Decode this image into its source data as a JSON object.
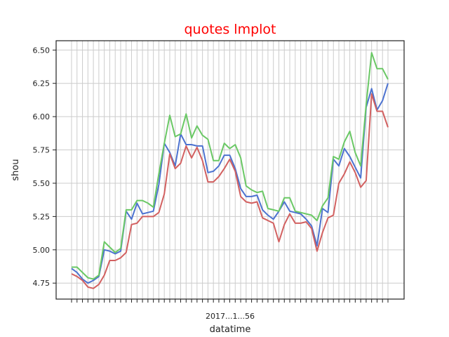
{
  "chart_data": {
    "type": "line",
    "title": "quotes lmplot",
    "xlabel": "datatime",
    "ylabel": "shou",
    "ylim": [
      4.63,
      6.57
    ],
    "yticks": [
      "4.75",
      "5.00",
      "5.25",
      "5.50",
      "5.75",
      "6.00",
      "6.25",
      "6.50"
    ],
    "xtick_overlap_text": "2017...1...56",
    "grid": true,
    "colors": {
      "blue": "#4c72d0",
      "green": "#6ac865",
      "red": "#d26060",
      "title": "#ff0000",
      "grid": "#cccccc"
    },
    "series": [
      {
        "color": "blue",
        "values": [
          4.86,
          4.83,
          4.78,
          4.75,
          4.77,
          4.8,
          5.0,
          4.99,
          4.97,
          4.99,
          5.29,
          5.23,
          5.35,
          5.27,
          5.28,
          5.29,
          5.49,
          5.8,
          5.73,
          5.63,
          5.87,
          5.79,
          5.79,
          5.78,
          5.78,
          5.58,
          5.59,
          5.63,
          5.71,
          5.71,
          5.61,
          5.46,
          5.4,
          5.4,
          5.41,
          5.3,
          5.26,
          5.23,
          5.29,
          5.36,
          5.29,
          5.28,
          5.27,
          5.23,
          5.18,
          5.03,
          5.31,
          5.28,
          5.68,
          5.63,
          5.76,
          5.7,
          5.62,
          5.54,
          6.07,
          6.21,
          6.05,
          6.12,
          6.25
        ]
      },
      {
        "color": "green",
        "values": [
          4.87,
          4.87,
          4.83,
          4.79,
          4.78,
          4.81,
          5.06,
          5.02,
          4.98,
          5.01,
          5.3,
          5.3,
          5.37,
          5.37,
          5.35,
          5.32,
          5.57,
          5.8,
          6.01,
          5.85,
          5.87,
          6.02,
          5.84,
          5.93,
          5.86,
          5.83,
          5.67,
          5.67,
          5.8,
          5.76,
          5.79,
          5.69,
          5.48,
          5.45,
          5.43,
          5.44,
          5.31,
          5.3,
          5.29,
          5.39,
          5.39,
          5.29,
          5.28,
          5.27,
          5.26,
          5.22,
          5.33,
          5.39,
          5.7,
          5.68,
          5.81,
          5.89,
          5.73,
          5.63,
          6.09,
          6.48,
          6.36,
          6.36,
          6.28
        ]
      },
      {
        "color": "red",
        "values": [
          4.82,
          4.8,
          4.77,
          4.72,
          4.71,
          4.74,
          4.81,
          4.92,
          4.92,
          4.94,
          4.98,
          5.19,
          5.2,
          5.25,
          5.25,
          5.25,
          5.28,
          5.42,
          5.72,
          5.61,
          5.65,
          5.78,
          5.69,
          5.77,
          5.67,
          5.51,
          5.51,
          5.55,
          5.61,
          5.68,
          5.59,
          5.4,
          5.36,
          5.35,
          5.36,
          5.24,
          5.22,
          5.2,
          5.06,
          5.19,
          5.27,
          5.2,
          5.2,
          5.21,
          5.16,
          4.99,
          5.13,
          5.24,
          5.26,
          5.5,
          5.57,
          5.66,
          5.58,
          5.47,
          5.52,
          6.17,
          6.04,
          6.04,
          5.92
        ]
      }
    ]
  }
}
